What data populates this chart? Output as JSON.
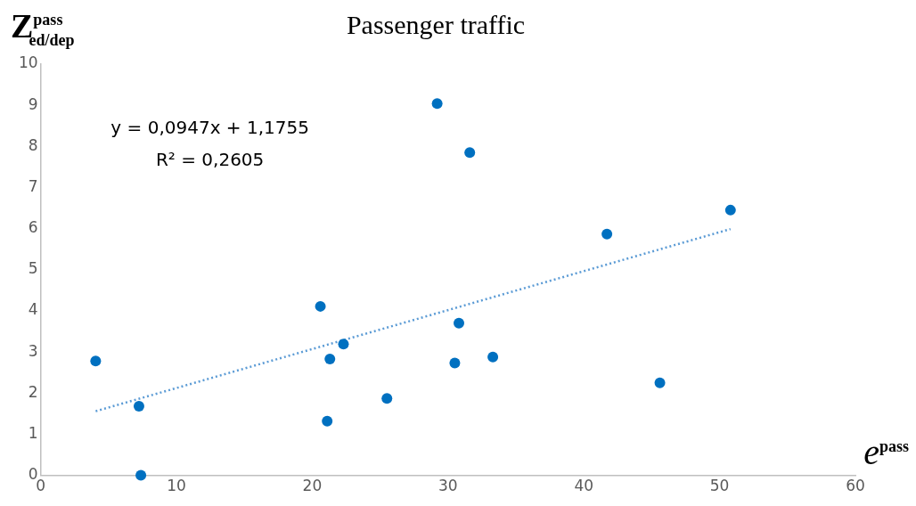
{
  "chart_data": {
    "type": "scatter",
    "title": "Passenger traffic",
    "ylabel": "Z$^{pass}$$_{ed/dep}$",
    "xlabel": "e$^{pass}$",
    "annotations": [
      "y = 0,0947x + 1,1755",
      "R² = 0,2605"
    ],
    "xlim": [
      0,
      60
    ],
    "xticks": [
      0,
      10,
      20,
      30,
      40,
      50,
      60
    ],
    "ylim": [
      0,
      10
    ],
    "yticks": [
      0,
      1,
      2,
      3,
      4,
      5,
      6,
      7,
      8,
      9,
      10
    ],
    "grid": false,
    "legend": false,
    "marker": "circle",
    "series": [
      {
        "color": "#0070c0",
        "x": [
          4.05,
          7.24,
          7.38,
          20.6,
          21.3,
          22.3,
          21.1,
          25.5,
          29.2,
          31.6,
          30.8,
          30.5,
          33.3,
          41.7,
          45.6,
          50.8
        ],
        "values": [
          2.78,
          1.68,
          0,
          4.11,
          2.83,
          3.19,
          1.32,
          1.87,
          9.04,
          7.85,
          3.7,
          2.73,
          2.88,
          5.87,
          2.25,
          6.45
        ]
      },
      {
        "type": "line",
        "color": "#5b9bd5",
        "line_style": "dotted",
        "marker": "none",
        "x": [
          4.05,
          50.8
        ],
        "values": [
          1.56,
          5.99
        ]
      }
    ]
  }
}
